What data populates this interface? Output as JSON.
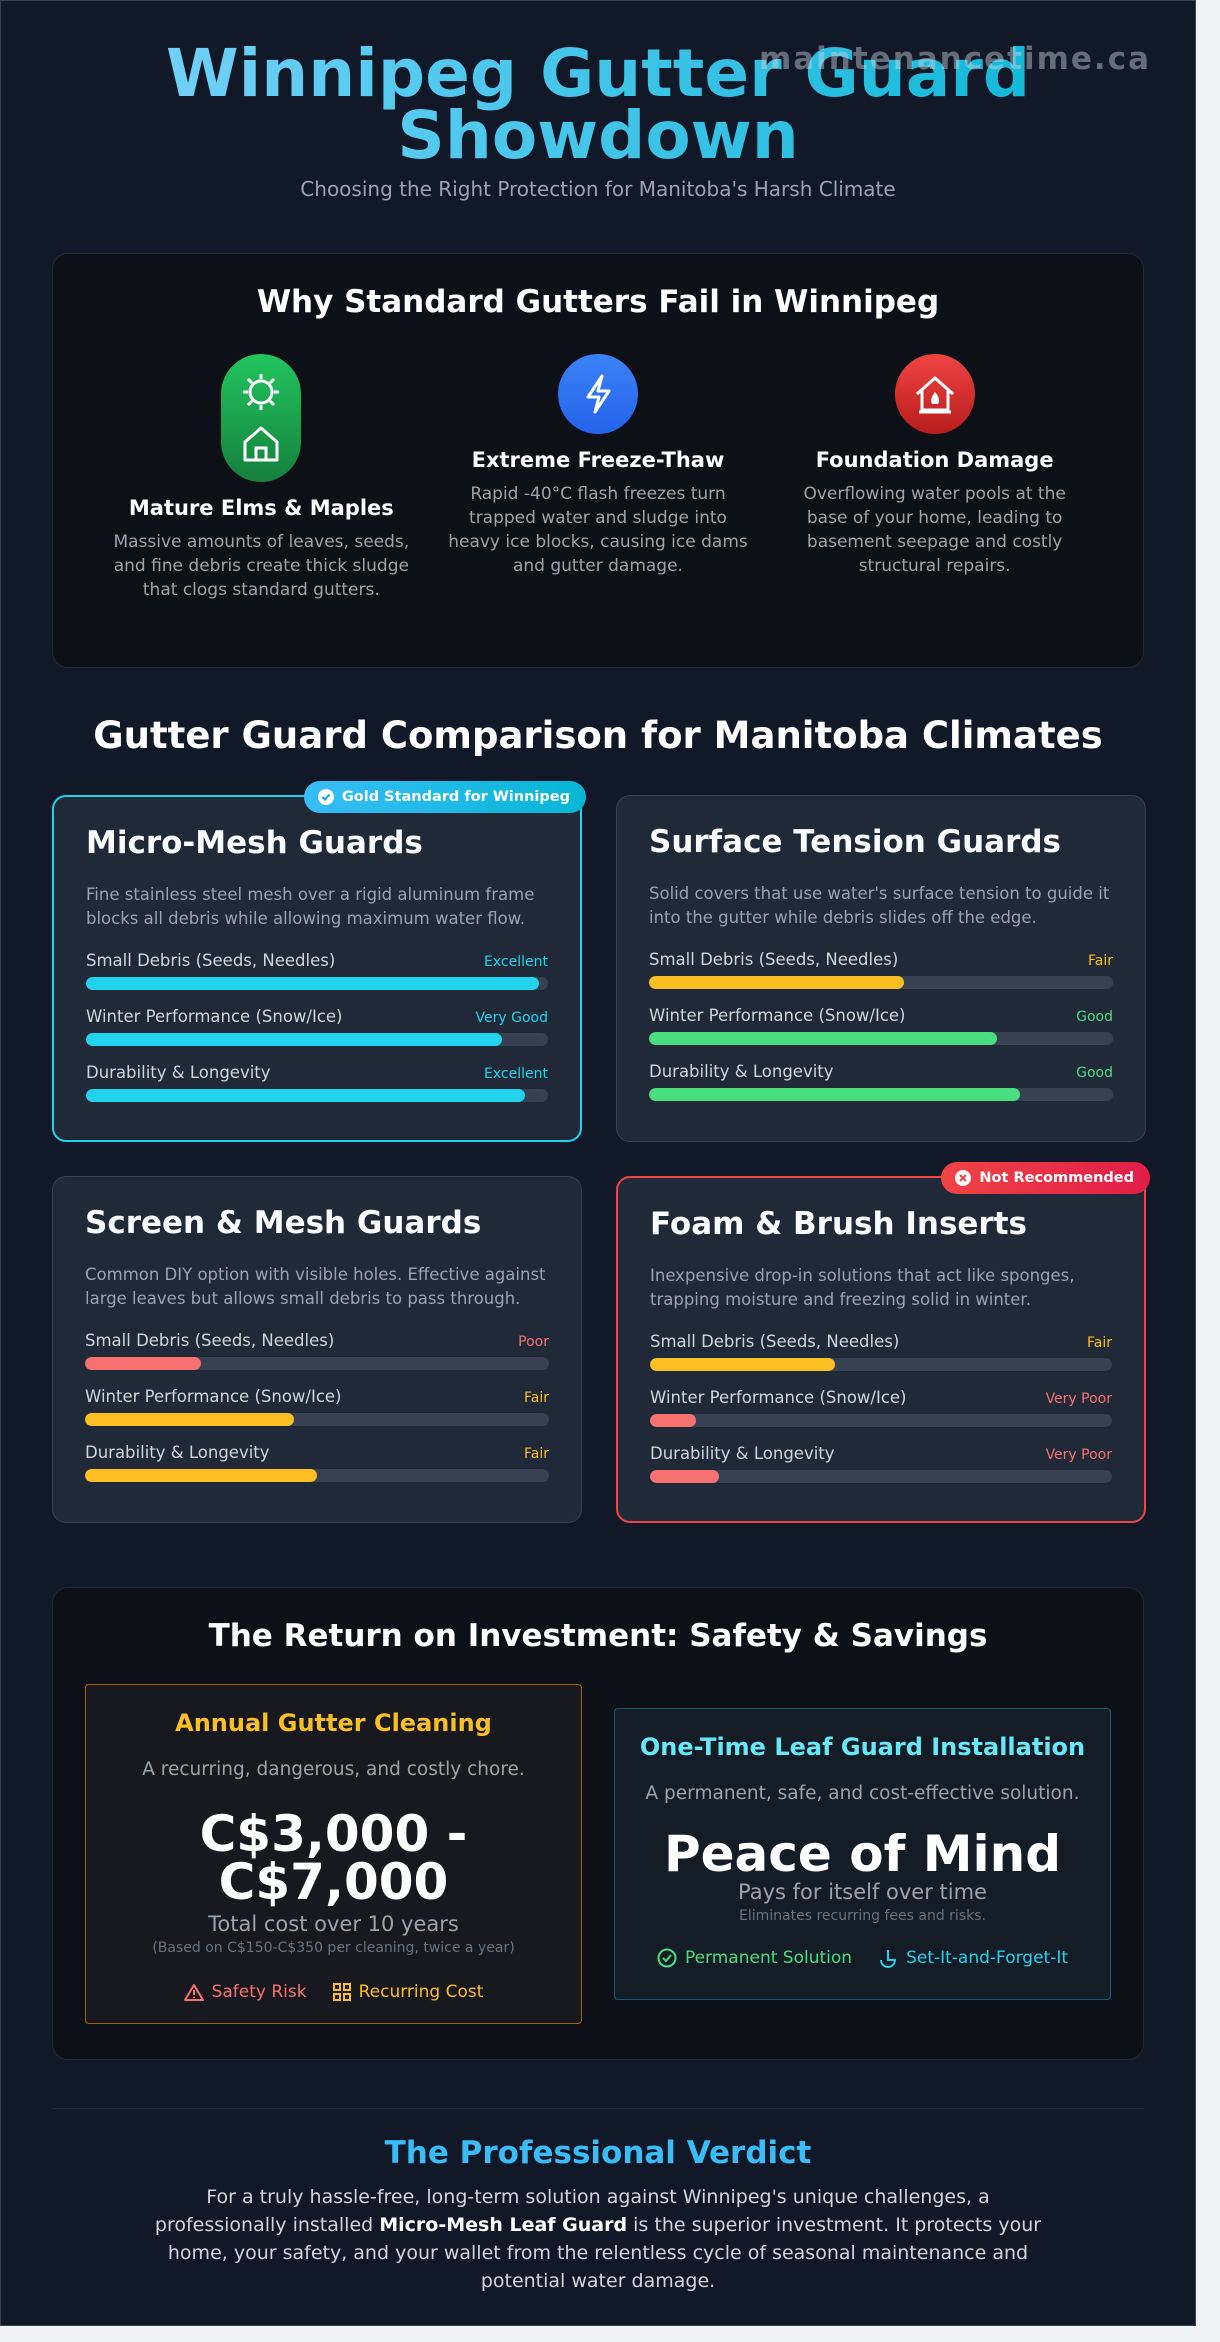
{
  "header": {
    "watermark": "maintenancetime.ca",
    "title": "Winnipeg Gutter Guard Showdown",
    "subtitle": "Choosing the Right Protection for Manitoba's Harsh Climate"
  },
  "problems": {
    "title": "Why Standard Gutters Fail in Winnipeg",
    "items": [
      {
        "title": "Mature Elms & Maples",
        "text": "Massive amounts of leaves, seeds, and fine debris create thick sludge that clogs standard gutters."
      },
      {
        "title": "Extreme Freeze-Thaw",
        "text": "Rapid -40°C flash freezes turn trapped water and sludge into heavy ice blocks, causing ice dams and gutter damage."
      },
      {
        "title": "Foundation Damage",
        "text": "Overflowing water pools at the base of your home, leading to basement seepage and costly structural repairs."
      }
    ]
  },
  "comparison": {
    "title": "Gutter Guard Comparison for Manitoba Climates",
    "cards": [
      {
        "title": "Micro-Mesh Guards",
        "badge": "Gold Standard for Winnipeg",
        "accent": "#22d3ee",
        "description": "Fine stainless steel mesh over a rigid aluminum frame blocks all debris while allowing maximum water flow.",
        "ratings": [
          {
            "label": "Small Debris (Seeds, Needles)",
            "rating": "Excellent",
            "value": 98,
            "color": "#22d3ee"
          },
          {
            "label": "Winter Performance (Snow/Ice)",
            "rating": "Very Good",
            "value": 90,
            "color": "#22d3ee"
          },
          {
            "label": "Durability & Longevity",
            "rating": "Excellent",
            "value": 95,
            "color": "#22d3ee"
          }
        ]
      },
      {
        "title": "Surface Tension Guards",
        "description": "Solid covers that use water's surface tension to guide it into the gutter while debris slides off the edge.",
        "ratings": [
          {
            "label": "Small Debris (Seeds, Needles)",
            "rating": "Fair",
            "value": 55,
            "color": "#fbbf24"
          },
          {
            "label": "Winter Performance (Snow/Ice)",
            "rating": "Good",
            "value": 75,
            "color": "#4ade80"
          },
          {
            "label": "Durability & Longevity",
            "rating": "Good",
            "value": 80,
            "color": "#4ade80"
          }
        ]
      },
      {
        "title": "Screen & Mesh Guards",
        "description": "Common DIY option with visible holes. Effective against large leaves but allows small debris to pass through.",
        "ratings": [
          {
            "label": "Small Debris (Seeds, Needles)",
            "rating": "Poor",
            "value": 25,
            "color": "#f87171"
          },
          {
            "label": "Winter Performance (Snow/Ice)",
            "rating": "Fair",
            "value": 45,
            "color": "#fbbf24"
          },
          {
            "label": "Durability & Longevity",
            "rating": "Fair",
            "value": 50,
            "color": "#fbbf24"
          }
        ]
      },
      {
        "title": "Foam & Brush Inserts",
        "badge": "Not Recommended",
        "accent": "#ef4444",
        "description": "Inexpensive drop-in solutions that act like sponges, trapping moisture and freezing solid in winter.",
        "ratings": [
          {
            "label": "Small Debris (Seeds, Needles)",
            "rating": "Fair",
            "value": 40,
            "color": "#fbbf24"
          },
          {
            "label": "Winter Performance (Snow/Ice)",
            "rating": "Very Poor",
            "value": 10,
            "color": "#f87171"
          },
          {
            "label": "Durability & Longevity",
            "rating": "Very Poor",
            "value": 15,
            "color": "#f87171"
          }
        ]
      }
    ]
  },
  "roi": {
    "title": "The Return on Investment: Safety & Savings",
    "cleaning": {
      "title": "Annual Gutter Cleaning",
      "description": "A recurring, dangerous, and costly chore.",
      "cost": "C$3,000 - C$7,000",
      "cost_caption": "Total cost over 10 years",
      "note": "(Based on C$150-C$350 per cleaning, twice a year)",
      "tags": [
        "Safety Risk",
        "Recurring Cost"
      ]
    },
    "installation": {
      "title": "One-Time Leaf Guard Installation",
      "description": "A permanent, safe, and cost-effective solution.",
      "headline": "Peace of Mind",
      "caption": "Pays for itself over time",
      "note": "Eliminates recurring fees and risks.",
      "tags": [
        "Permanent Solution",
        "Set-It-and-Forget-It"
      ]
    }
  },
  "verdict": {
    "title": "The Professional Verdict",
    "text_before": "For a truly hassle-free, long-term solution against Winnipeg's unique challenges, a professionally installed ",
    "strong": "Micro-Mesh Leaf Guard",
    "text_after": " is the superior investment. It protects your home, your safety, and your wallet from the relentless cycle of seasonal maintenance and potential water damage."
  }
}
